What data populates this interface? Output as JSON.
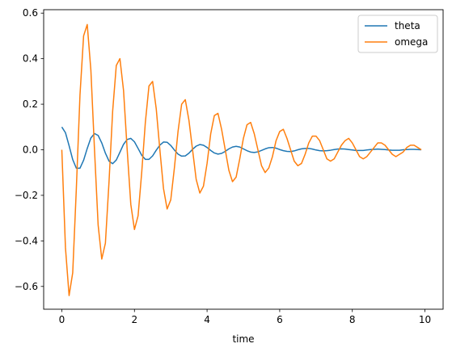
{
  "chart_data": {
    "type": "line",
    "title": "",
    "xlabel": "time",
    "ylabel": "",
    "xlim": [
      -0.5,
      10.5
    ],
    "ylim": [
      -0.7,
      0.615
    ],
    "xticks": [
      0,
      2,
      4,
      6,
      8,
      10
    ],
    "yticks": [
      -0.6,
      -0.4,
      -0.2,
      0.0,
      0.2,
      0.4,
      0.6
    ],
    "xtick_labels": [
      "0",
      "2",
      "4",
      "6",
      "8",
      "10"
    ],
    "ytick_labels": [
      "−0.6",
      "−0.4",
      "−0.2",
      "0.0",
      "0.2",
      "0.4",
      "0.6"
    ],
    "grid": false,
    "legend_position": "top-right",
    "series": [
      {
        "name": "theta",
        "color": "#1f77b4",
        "x": [
          0.0,
          0.1,
          0.2,
          0.3,
          0.4,
          0.5,
          0.6,
          0.7,
          0.8,
          0.9,
          1.0,
          1.1,
          1.2,
          1.3,
          1.4,
          1.5,
          1.6,
          1.7,
          1.8,
          1.9,
          2.0,
          2.1,
          2.2,
          2.3,
          2.4,
          2.5,
          2.6,
          2.7,
          2.8,
          2.9,
          3.0,
          3.1,
          3.2,
          3.3,
          3.4,
          3.5,
          3.6,
          3.7,
          3.8,
          3.9,
          4.0,
          4.1,
          4.2,
          4.3,
          4.4,
          4.5,
          4.6,
          4.7,
          4.8,
          4.9,
          5.0,
          5.1,
          5.2,
          5.3,
          5.4,
          5.5,
          5.6,
          5.7,
          5.8,
          5.9,
          6.0,
          6.1,
          6.2,
          6.3,
          6.4,
          6.5,
          6.6,
          6.7,
          6.8,
          6.9,
          7.0,
          7.1,
          7.2,
          7.3,
          7.4,
          7.5,
          7.6,
          7.7,
          7.8,
          7.9,
          8.0,
          8.1,
          8.2,
          8.3,
          8.4,
          8.5,
          8.6,
          8.7,
          8.8,
          8.9,
          9.0,
          9.1,
          9.2,
          9.3,
          9.4,
          9.5,
          9.6,
          9.7,
          9.8,
          9.9
        ],
        "y": [
          0.1,
          0.075,
          0.018,
          -0.043,
          -0.081,
          -0.081,
          -0.046,
          0.006,
          0.052,
          0.071,
          0.063,
          0.03,
          -0.015,
          -0.05,
          -0.061,
          -0.045,
          -0.011,
          0.024,
          0.045,
          0.05,
          0.035,
          0.006,
          -0.024,
          -0.042,
          -0.042,
          -0.027,
          -0.002,
          0.02,
          0.034,
          0.033,
          0.019,
          -0.001,
          -0.019,
          -0.028,
          -0.027,
          -0.015,
          0.002,
          0.016,
          0.023,
          0.02,
          0.01,
          -0.003,
          -0.014,
          -0.019,
          -0.016,
          -0.007,
          0.004,
          0.012,
          0.015,
          0.012,
          0.004,
          -0.004,
          -0.01,
          -0.012,
          -0.009,
          -0.003,
          0.004,
          0.009,
          0.01,
          0.007,
          0.001,
          -0.004,
          -0.007,
          -0.008,
          -0.005,
          0.0,
          0.004,
          0.006,
          0.006,
          0.003,
          -0.001,
          -0.004,
          -0.005,
          -0.004,
          -0.002,
          0.001,
          0.003,
          0.004,
          0.003,
          0.001,
          -0.001,
          -0.003,
          -0.003,
          -0.003,
          -0.001,
          0.001,
          0.002,
          0.003,
          0.002,
          0.001,
          -0.001,
          -0.002,
          -0.002,
          -0.002,
          0.0,
          0.001,
          0.002,
          0.002,
          0.001,
          0.0
        ]
      },
      {
        "name": "omega",
        "color": "#ff7f0e",
        "x": [
          0.0,
          0.1,
          0.2,
          0.3,
          0.4,
          0.5,
          0.6,
          0.7,
          0.8,
          0.9,
          1.0,
          1.1,
          1.2,
          1.3,
          1.4,
          1.5,
          1.6,
          1.7,
          1.8,
          1.9,
          2.0,
          2.1,
          2.2,
          2.3,
          2.4,
          2.5,
          2.6,
          2.7,
          2.8,
          2.9,
          3.0,
          3.1,
          3.2,
          3.3,
          3.4,
          3.5,
          3.6,
          3.7,
          3.8,
          3.9,
          4.0,
          4.1,
          4.2,
          4.3,
          4.4,
          4.5,
          4.6,
          4.7,
          4.8,
          4.9,
          5.0,
          5.1,
          5.2,
          5.3,
          5.4,
          5.5,
          5.6,
          5.7,
          5.8,
          5.9,
          6.0,
          6.1,
          6.2,
          6.3,
          6.4,
          6.5,
          6.6,
          6.7,
          6.8,
          6.9,
          7.0,
          7.1,
          7.2,
          7.3,
          7.4,
          7.5,
          7.6,
          7.7,
          7.8,
          7.9,
          8.0,
          8.1,
          8.2,
          8.3,
          8.4,
          8.5,
          8.6,
          8.7,
          8.8,
          8.9,
          9.0,
          9.1,
          9.2,
          9.3,
          9.4,
          9.5,
          9.6,
          9.7,
          9.8,
          9.9
        ],
        "y": [
          0.0,
          -0.43,
          -0.64,
          -0.54,
          -0.17,
          0.24,
          0.5,
          0.55,
          0.35,
          0.0,
          -0.33,
          -0.48,
          -0.41,
          -0.14,
          0.17,
          0.37,
          0.4,
          0.26,
          0.0,
          -0.24,
          -0.35,
          -0.29,
          -0.1,
          0.12,
          0.28,
          0.3,
          0.18,
          0.0,
          -0.17,
          -0.26,
          -0.22,
          -0.08,
          0.08,
          0.2,
          0.22,
          0.13,
          0.0,
          -0.13,
          -0.19,
          -0.16,
          -0.06,
          0.07,
          0.15,
          0.16,
          0.09,
          0.0,
          -0.09,
          -0.14,
          -0.12,
          -0.04,
          0.05,
          0.11,
          0.12,
          0.07,
          0.0,
          -0.07,
          -0.1,
          -0.08,
          -0.03,
          0.04,
          0.08,
          0.09,
          0.05,
          0.0,
          -0.05,
          -0.07,
          -0.06,
          -0.02,
          0.03,
          0.06,
          0.06,
          0.04,
          0.0,
          -0.04,
          -0.05,
          -0.04,
          -0.01,
          0.02,
          0.04,
          0.05,
          0.03,
          0.0,
          -0.03,
          -0.04,
          -0.03,
          -0.01,
          0.01,
          0.03,
          0.03,
          0.02,
          0.0,
          -0.02,
          -0.03,
          -0.02,
          -0.01,
          0.01,
          0.02,
          0.02,
          0.01,
          0.0
        ]
      }
    ]
  }
}
